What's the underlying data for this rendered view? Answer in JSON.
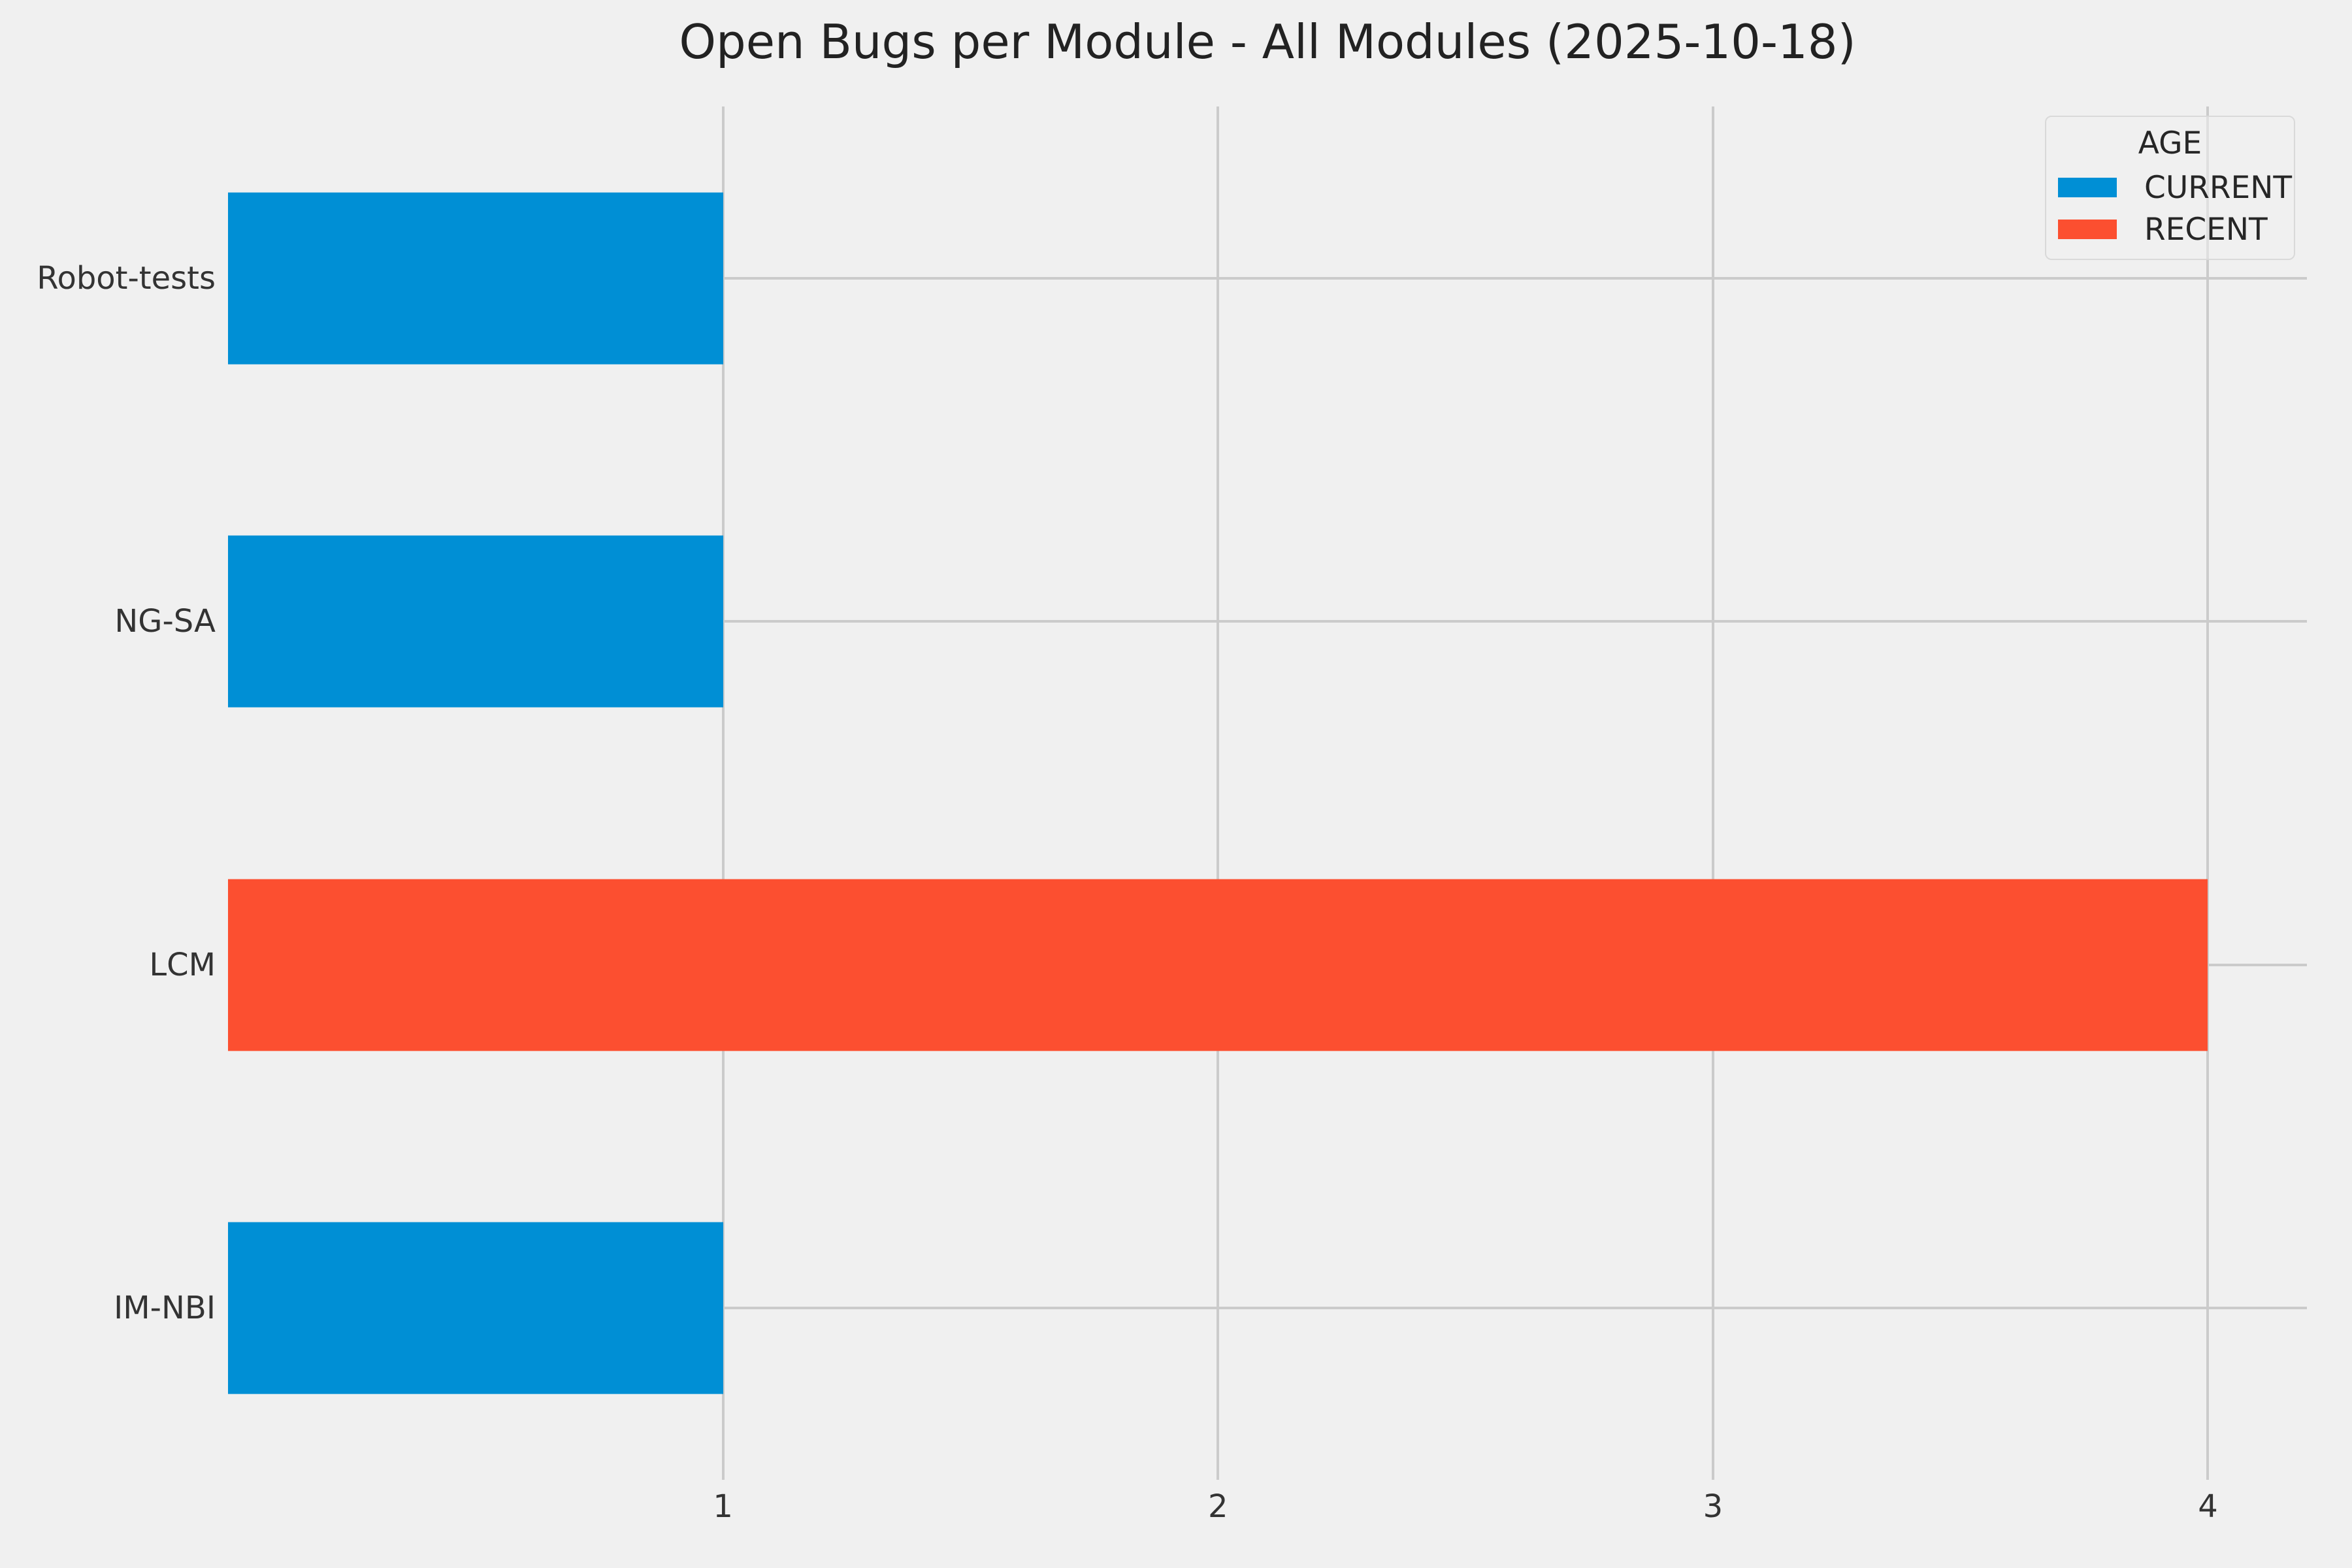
{
  "chart_data": {
    "type": "bar",
    "orientation": "horizontal",
    "title": "Open Bugs per Module - All Modules (2025-10-18)",
    "categories": [
      "Robot-tests",
      "NG-SA",
      "LCM",
      "IM-NBI"
    ],
    "values": [
      1,
      1,
      4,
      1
    ],
    "bar_series": [
      "CURRENT",
      "CURRENT",
      "RECENT",
      "CURRENT"
    ],
    "xlabel": "",
    "ylabel": "",
    "xticks": [
      1,
      2,
      3,
      4
    ],
    "xlim": [
      0,
      4.2
    ],
    "grid": true,
    "legend": {
      "title": "AGE",
      "position": "upper right",
      "entries": [
        {
          "label": "CURRENT",
          "color": "#008fd5"
        },
        {
          "label": "RECENT",
          "color": "#fc4f30"
        }
      ]
    },
    "style": {
      "background_color": "#f0f0f0",
      "grid_color": "#cbcbcb",
      "text_color": "#262626"
    }
  }
}
